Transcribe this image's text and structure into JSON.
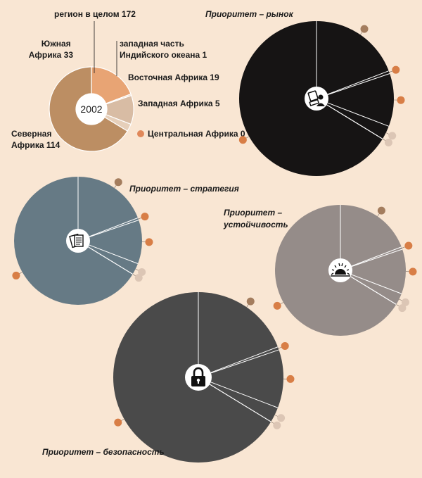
{
  "chart_data": [
    {
      "type": "pie",
      "donut": true,
      "center_label": "2002",
      "title": "регион в целом 172",
      "slices": [
        {
          "label_lines": [
            "Северная",
            "Африка 114"
          ],
          "value": 114,
          "color": "#bc8e63"
        },
        {
          "label_lines": [
            "Южная",
            "Африка 33"
          ],
          "value": 33,
          "color": "#e8a474"
        },
        {
          "label_lines": [
            "западная часть",
            "Индийского океана 1"
          ],
          "value": 1,
          "color": "#ead4c0"
        },
        {
          "label_lines": [
            "Восточная Африка 19"
          ],
          "value": 19,
          "color": "#d8bca4"
        },
        {
          "label_lines": [
            "Западная Африка 5"
          ],
          "value": 5,
          "color": "#e6cfba"
        },
        {
          "label_lines": [
            "Центральная Африка 0"
          ],
          "value": 0,
          "color": "#e0885a"
        }
      ]
    },
    {
      "type": "pie",
      "title": "Приоритет – рынок",
      "icon": "computer-user-icon",
      "fill": "#161414",
      "values": [
        114,
        33,
        1,
        19,
        5,
        0
      ]
    },
    {
      "type": "pie",
      "title": "Приоритет – стратегия",
      "icon": "documents-icon",
      "fill": "#667a85",
      "values": [
        114,
        33,
        1,
        19,
        5,
        0
      ]
    },
    {
      "type": "pie",
      "title": "Приоритет – устойчивость",
      "icon": "sunrise-icon",
      "fill": "#958c89",
      "values": [
        114,
        33,
        1,
        19,
        5,
        0
      ]
    },
    {
      "type": "pie",
      "title": "Приоритет – безопасность",
      "icon": "padlock-icon",
      "fill": "#4a4a4a",
      "values": [
        114,
        33,
        1,
        19,
        5,
        0
      ]
    }
  ],
  "colors": {
    "background": "#f9e6d3",
    "dot_light": "#dcc6b5",
    "dot_orange": "#d87e46",
    "dot_brown": "#a47d5e"
  }
}
